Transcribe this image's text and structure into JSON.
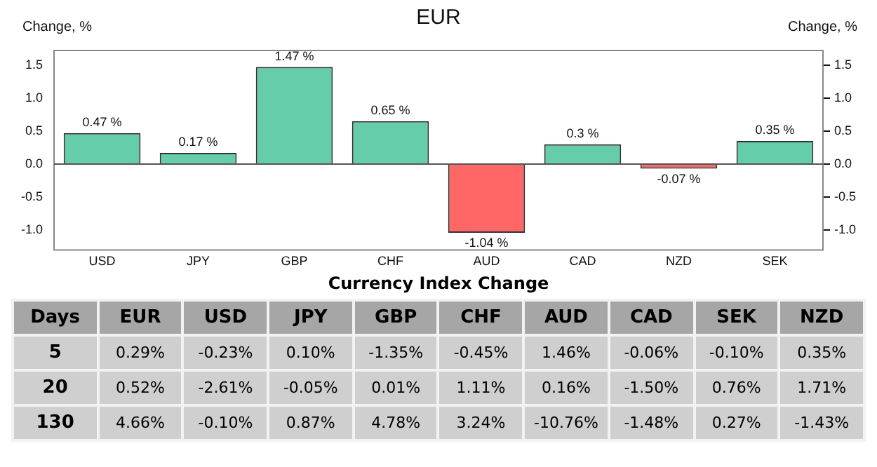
{
  "chart_data": [
    {
      "type": "bar",
      "title": "EUR",
      "ylabel": "Change, %",
      "y2label": "Change, %",
      "categories": [
        "USD",
        "JPY",
        "GBP",
        "CHF",
        "AUD",
        "CAD",
        "NZD",
        "SEK"
      ],
      "values": [
        0.47,
        0.17,
        1.47,
        0.65,
        -1.04,
        0.3,
        -0.07,
        0.35
      ],
      "value_labels": [
        "0.47 %",
        "0.17 %",
        "1.47 %",
        "0.65 %",
        "-1.04 %",
        "0.3 %",
        "-0.07 %",
        "0.35 %"
      ],
      "colors": [
        "#66cdaa",
        "#66cdaa",
        "#66cdaa",
        "#66cdaa",
        "#ff6666",
        "#66cdaa",
        "#ff6666",
        "#66cdaa"
      ],
      "ylim": [
        -1.3,
        1.72
      ],
      "yticks": [
        {
          "value": -1,
          "label": "-1.0"
        },
        {
          "value": -0.5,
          "label": "-0.5"
        },
        {
          "value": 0,
          "label": "0.0"
        },
        {
          "value": 0.5,
          "label": "0.5"
        },
        {
          "value": 1,
          "label": "1.0"
        },
        {
          "value": 1.5,
          "label": "1.5"
        }
      ],
      "y2lim": [
        -1.3,
        1.72
      ],
      "y2ticks": [
        {
          "value": -1,
          "label": "-1.0"
        },
        {
          "value": -0.5,
          "label": "-0.5"
        },
        {
          "value": 0,
          "label": "0.0"
        },
        {
          "value": 0.5,
          "label": "0.5"
        },
        {
          "value": 1,
          "label": "1.0"
        },
        {
          "value": 1.5,
          "label": "1.5"
        }
      ],
      "ref_lines": [
        {
          "axis": "y",
          "value": 0,
          "color": "#555555"
        }
      ],
      "grid": false,
      "legend": false
    },
    {
      "type": "heatmap",
      "title": "Currency Index Change",
      "ylabel": "Days",
      "categories": [
        "EUR",
        "USD",
        "JPY",
        "GBP",
        "CHF",
        "AUD",
        "CAD",
        "SEK",
        "NZD"
      ],
      "y_categories": [
        "5",
        "20",
        "130"
      ],
      "cells": [
        [
          0.29,
          -0.23,
          0.1,
          -1.35,
          -0.45,
          1.46,
          -0.06,
          -0.1,
          0.35
        ],
        [
          0.52,
          -2.61,
          -0.05,
          0.01,
          1.11,
          0.16,
          -1.5,
          0.76,
          1.71
        ],
        [
          4.66,
          -0.1,
          0.87,
          4.78,
          3.24,
          -10.76,
          -1.48,
          0.27,
          -1.43
        ]
      ],
      "cell_labels": [
        [
          "0.29%",
          "-0.23%",
          "0.10%",
          "-1.35%",
          "-0.45%",
          "1.46%",
          "-0.06%",
          "-0.10%",
          "0.35%"
        ],
        [
          "0.52%",
          "-2.61%",
          "-0.05%",
          "0.01%",
          "1.11%",
          "0.16%",
          "-1.50%",
          "0.76%",
          "1.71%"
        ],
        [
          "4.66%",
          "-0.10%",
          "0.87%",
          "4.78%",
          "3.24%",
          "-10.76%",
          "-1.48%",
          "0.27%",
          "-1.43%"
        ]
      ]
    }
  ]
}
